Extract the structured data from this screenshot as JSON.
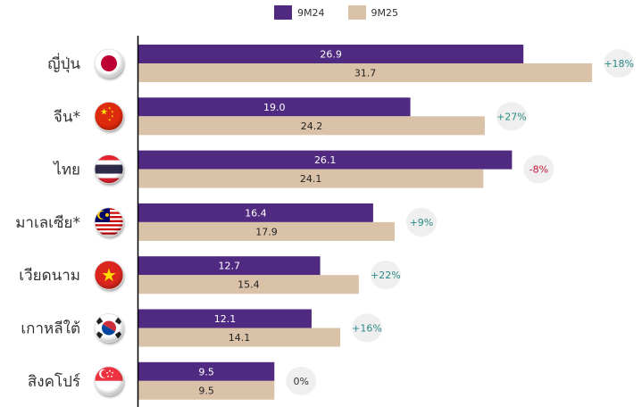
{
  "chart_data": {
    "type": "bar",
    "orientation": "horizontal",
    "title": "",
    "xlabel": "",
    "ylabel": "",
    "xlim": [
      0,
      35
    ],
    "grid": false,
    "legend_position": "top-center",
    "categories": [
      "ญี่ปุ่น",
      "จีน*",
      "ไทย",
      "มาเลเซีย*",
      "เวียดนาม",
      "เกาหลีใต้",
      "สิงคโปร์"
    ],
    "flags": [
      "japan-flag",
      "china-flag",
      "thailand-flag",
      "malaysia-flag",
      "vietnam-flag",
      "south-korea-flag",
      "singapore-flag"
    ],
    "series": [
      {
        "name": "9M24",
        "color": "#4f2a80",
        "label_color": "#ffffff",
        "values": [
          26.9,
          19.0,
          26.1,
          16.4,
          12.7,
          12.1,
          9.5
        ]
      },
      {
        "name": "9M25",
        "color": "#d9c2a8",
        "label_color": "#222222",
        "values": [
          31.7,
          24.2,
          24.1,
          17.9,
          15.4,
          14.1,
          9.5
        ]
      }
    ],
    "value_labels": {
      "9M24": [
        "26.9",
        "19.0",
        "26.1",
        "16.4",
        "12.7",
        "12.1",
        "9.5"
      ],
      "9M25": [
        "31.7",
        "24.2",
        "24.1",
        "17.9",
        "15.4",
        "14.1",
        "9.5"
      ]
    },
    "change_badges": [
      {
        "text": "+18%",
        "color": "#2a8a86"
      },
      {
        "text": "+27%",
        "color": "#2a8a86"
      },
      {
        "text": "-8%",
        "color": "#c8163c"
      },
      {
        "text": "+9%",
        "color": "#2a8a86"
      },
      {
        "text": "+22%",
        "color": "#2a8a86"
      },
      {
        "text": "+16%",
        "color": "#2a8a86"
      },
      {
        "text": "0%",
        "color": "#333333"
      }
    ],
    "badge_background": "#efefef"
  }
}
